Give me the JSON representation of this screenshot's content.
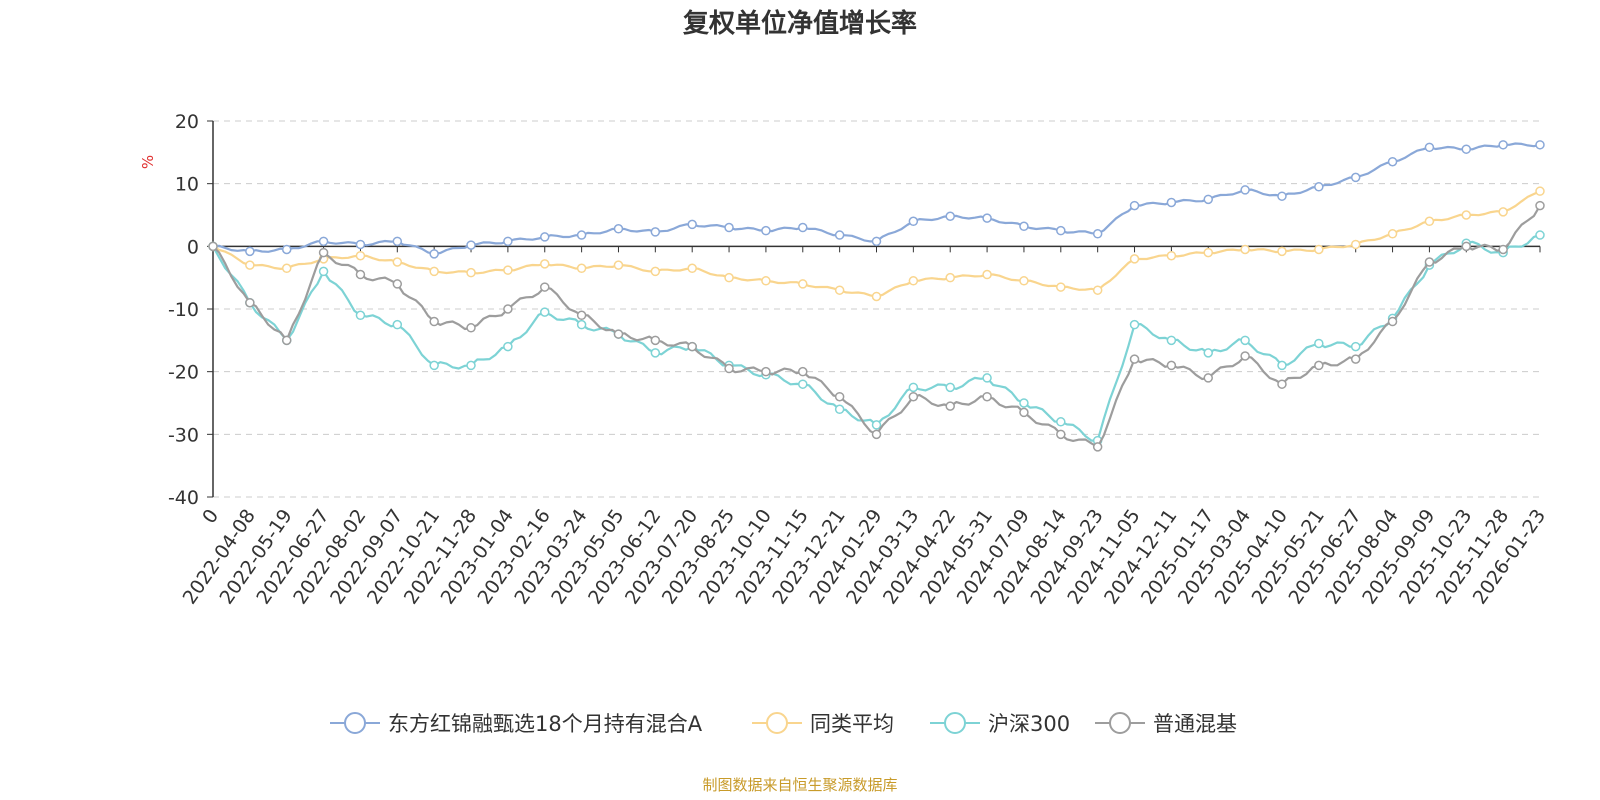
{
  "chart_data": {
    "type": "line",
    "title": "复权单位净值增长率",
    "ylabel": "%",
    "ylim": [
      -40,
      20
    ],
    "yticks": [
      20,
      10,
      0,
      -10,
      -20,
      -30,
      -40
    ],
    "grid": true,
    "legend_position": "bottom",
    "source_note": "制图数据来自恒生聚源数据库",
    "x_tick_labels": [
      "0",
      "2022-04-08",
      "2022-05-19",
      "2022-06-27",
      "2022-08-02",
      "2022-09-07",
      "2022-10-21",
      "2022-11-28",
      "2023-01-04",
      "2023-02-16",
      "2023-03-24",
      "2023-05-05",
      "2023-06-12",
      "2023-07-20",
      "2023-08-25",
      "2023-10-10",
      "2023-11-15",
      "2023-12-21",
      "2024-01-29",
      "2024-03-13",
      "2024-04-22",
      "2024-05-31",
      "2024-07-09",
      "2024-08-14",
      "2024-09-23",
      "2024-11-05",
      "2024-12-11",
      "2025-01-17",
      "2025-03-04",
      "2025-04-10",
      "2025-05-21",
      "2025-06-27",
      "2025-08-04",
      "2025-09-09",
      "2025-10-23",
      "2025-11-28",
      "2026-01-23"
    ],
    "x_index": [
      0,
      1,
      2,
      3,
      4,
      5,
      6,
      7,
      8,
      9,
      10,
      11,
      12,
      13,
      14,
      15,
      16,
      17,
      18,
      19,
      20,
      21,
      22,
      23,
      24,
      25,
      26,
      27,
      28,
      29,
      30,
      31,
      32,
      33,
      34,
      35,
      36
    ],
    "series": [
      {
        "name": "东方红锦融甄选18个月持有混合A",
        "color": "#8aa8d8",
        "values": [
          0,
          -0.8,
          -0.5,
          0.8,
          0.3,
          0.8,
          -1.2,
          0.2,
          0.8,
          1.5,
          1.8,
          2.8,
          2.3,
          3.5,
          3.0,
          2.5,
          3.0,
          1.8,
          0.8,
          4.0,
          4.8,
          4.5,
          3.2,
          2.5,
          2.0,
          6.5,
          7.0,
          7.5,
          9.0,
          8.0,
          9.5,
          11.0,
          13.5,
          15.8,
          15.5,
          16.2,
          16.2
        ]
      },
      {
        "name": "同类平均",
        "color": "#f9d58e",
        "values": [
          0,
          -3.0,
          -3.5,
          -2.0,
          -1.5,
          -2.5,
          -4.0,
          -4.2,
          -3.8,
          -2.8,
          -3.5,
          -3.0,
          -4.0,
          -3.5,
          -5.0,
          -5.5,
          -6.0,
          -7.0,
          -8.0,
          -5.5,
          -5.0,
          -4.5,
          -5.5,
          -6.5,
          -7.0,
          -2.0,
          -1.5,
          -1.0,
          -0.5,
          -0.8,
          -0.5,
          0.3,
          2.0,
          4.0,
          5.0,
          5.5,
          8.8
        ]
      },
      {
        "name": "沪深300",
        "color": "#7dd3d5",
        "values": [
          0,
          -9.0,
          -15.0,
          -4.0,
          -11.0,
          -12.5,
          -19.0,
          -19.0,
          -16.0,
          -10.5,
          -12.5,
          -14.0,
          -17.0,
          -16.0,
          -19.0,
          -20.5,
          -22.0,
          -26.0,
          -28.5,
          -22.5,
          -22.5,
          -21.0,
          -25.0,
          -28.0,
          -31.0,
          -12.5,
          -15.0,
          -17.0,
          -15.0,
          -19.0,
          -15.5,
          -16.0,
          -11.5,
          -3.0,
          0.5,
          -1.0,
          1.8
        ]
      },
      {
        "name": "普通混基",
        "color": "#9d9d9d",
        "values": [
          0,
          -9.0,
          -15.0,
          -1.0,
          -4.5,
          -6.0,
          -12.0,
          -13.0,
          -10.0,
          -6.5,
          -11.0,
          -14.0,
          -15.0,
          -16.0,
          -19.5,
          -20.0,
          -20.0,
          -24.0,
          -30.0,
          -24.0,
          -25.5,
          -24.0,
          -26.5,
          -30.0,
          -32.0,
          -18.0,
          -19.0,
          -21.0,
          -17.5,
          -22.0,
          -19.0,
          -18.0,
          -12.0,
          -2.5,
          0.0,
          -0.5,
          6.5
        ]
      }
    ]
  }
}
